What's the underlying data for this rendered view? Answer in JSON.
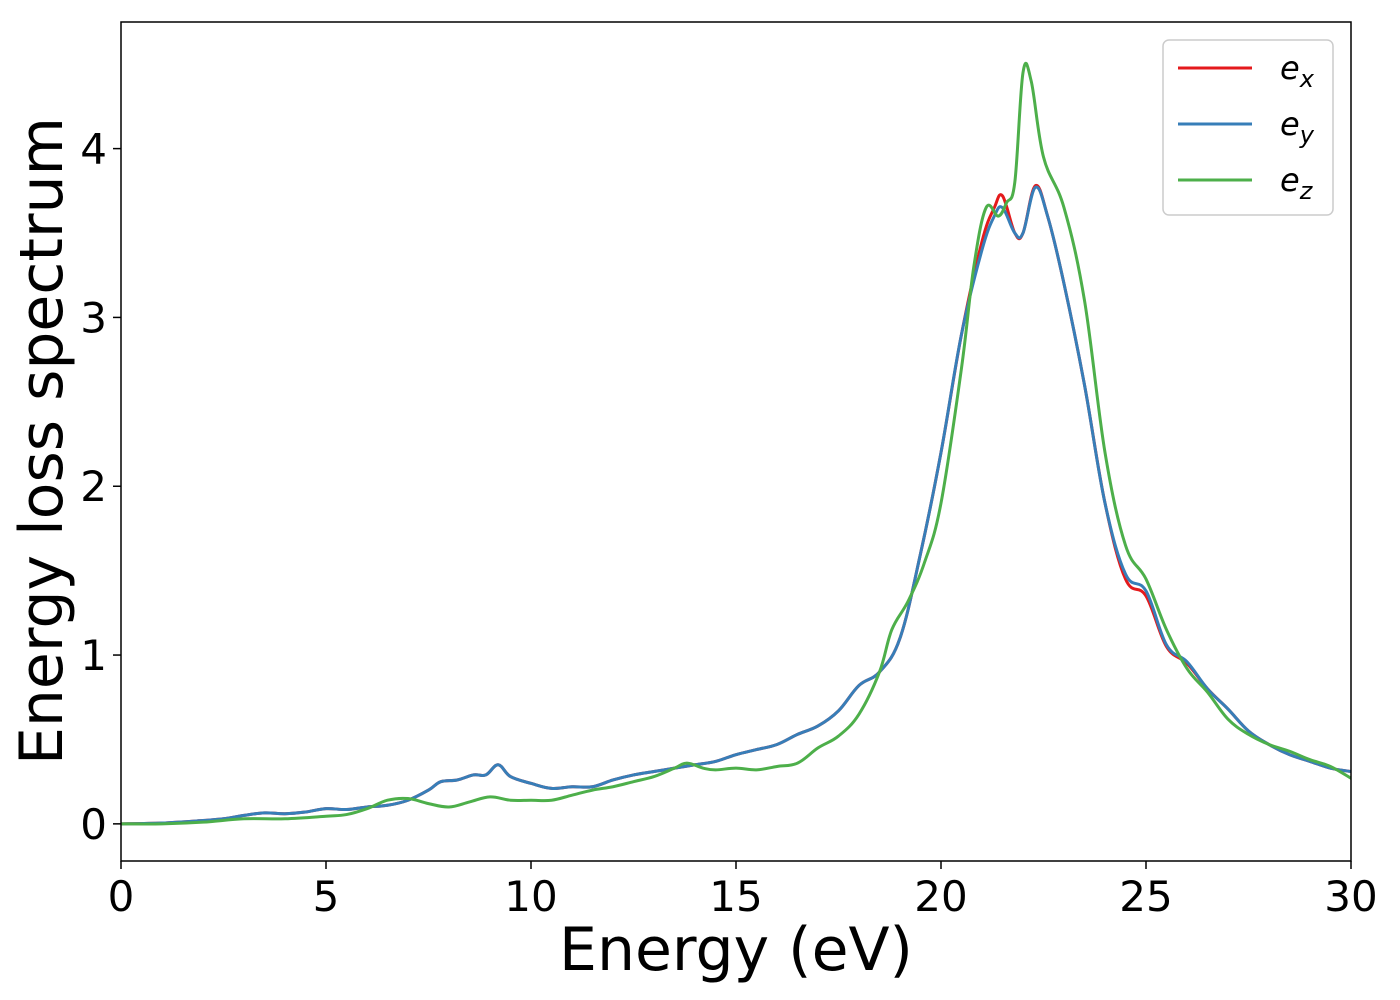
{
  "chart_data": {
    "type": "line",
    "title": "",
    "xlabel": "Energy (eV)",
    "ylabel": "Energy loss spectrum",
    "xlim": [
      0,
      30
    ],
    "ylim": [
      -0.22,
      4.75
    ],
    "xticks": [
      0,
      5,
      10,
      15,
      20,
      25,
      30
    ],
    "yticks": [
      0,
      1,
      2,
      3,
      4
    ],
    "grid": false,
    "legend_position": "top-right",
    "series": [
      {
        "name": "e_x",
        "legend_base": "e",
        "legend_sub": "x",
        "color": "#e41a1c",
        "x": [
          0,
          1,
          2,
          2.5,
          3,
          3.5,
          4,
          4.5,
          5,
          5.5,
          6,
          6.5,
          7,
          7.5,
          7.8,
          8.2,
          8.6,
          8.9,
          9.2,
          9.5,
          10,
          10.5,
          11,
          11.5,
          12,
          12.5,
          13,
          13.5,
          14,
          14.5,
          15,
          15.5,
          16,
          16.5,
          17,
          17.5,
          18,
          18.5,
          19,
          19.5,
          20,
          20.5,
          21,
          21.3,
          21.5,
          21.8,
          22,
          22.3,
          22.6,
          23,
          23.5,
          24,
          24.5,
          25,
          25.5,
          26,
          26.5,
          27,
          27.5,
          28,
          28.5,
          29,
          29.5,
          30
        ],
        "y": [
          0,
          0.005,
          0.02,
          0.03,
          0.05,
          0.065,
          0.06,
          0.07,
          0.09,
          0.085,
          0.1,
          0.11,
          0.14,
          0.2,
          0.25,
          0.26,
          0.29,
          0.29,
          0.35,
          0.28,
          0.24,
          0.21,
          0.22,
          0.22,
          0.26,
          0.29,
          0.31,
          0.33,
          0.35,
          0.37,
          0.41,
          0.44,
          0.47,
          0.53,
          0.58,
          0.67,
          0.82,
          0.9,
          1.1,
          1.6,
          2.2,
          2.9,
          3.45,
          3.65,
          3.72,
          3.5,
          3.5,
          3.78,
          3.6,
          3.2,
          2.6,
          1.9,
          1.45,
          1.35,
          1.05,
          0.95,
          0.8,
          0.68,
          0.55,
          0.47,
          0.41,
          0.37,
          0.33,
          0.31
        ]
      },
      {
        "name": "e_y",
        "legend_base": "e",
        "legend_sub": "y",
        "color": "#377eb8",
        "x": [
          0,
          1,
          2,
          2.5,
          3,
          3.5,
          4,
          4.5,
          5,
          5.5,
          6,
          6.5,
          7,
          7.5,
          7.8,
          8.2,
          8.6,
          8.9,
          9.2,
          9.5,
          10,
          10.5,
          11,
          11.5,
          12,
          12.5,
          13,
          13.5,
          14,
          14.5,
          15,
          15.5,
          16,
          16.5,
          17,
          17.5,
          18,
          18.5,
          19,
          19.5,
          20,
          20.5,
          21,
          21.3,
          21.5,
          21.8,
          22,
          22.3,
          22.6,
          23,
          23.5,
          24,
          24.5,
          25,
          25.5,
          26,
          26.5,
          27,
          27.5,
          28,
          28.5,
          29,
          29.5,
          30
        ],
        "y": [
          0,
          0.005,
          0.02,
          0.03,
          0.05,
          0.065,
          0.06,
          0.07,
          0.09,
          0.085,
          0.1,
          0.11,
          0.14,
          0.2,
          0.25,
          0.26,
          0.29,
          0.29,
          0.35,
          0.28,
          0.24,
          0.21,
          0.22,
          0.22,
          0.26,
          0.29,
          0.31,
          0.33,
          0.35,
          0.37,
          0.41,
          0.44,
          0.47,
          0.53,
          0.58,
          0.67,
          0.82,
          0.9,
          1.1,
          1.6,
          2.2,
          2.9,
          3.4,
          3.6,
          3.65,
          3.5,
          3.5,
          3.77,
          3.6,
          3.2,
          2.6,
          1.9,
          1.48,
          1.38,
          1.06,
          0.96,
          0.8,
          0.68,
          0.55,
          0.47,
          0.41,
          0.37,
          0.33,
          0.31
        ]
      },
      {
        "name": "e_z",
        "legend_base": "e",
        "legend_sub": "z",
        "color": "#4daf4a",
        "x": [
          0,
          1,
          2,
          3,
          4,
          5,
          5.5,
          6,
          6.5,
          7,
          7.5,
          8,
          8.5,
          9,
          9.5,
          10,
          10.5,
          11,
          11.5,
          12,
          12.5,
          13,
          13.5,
          13.8,
          14.2,
          14.5,
          15,
          15.5,
          16,
          16.5,
          17,
          17.5,
          18,
          18.5,
          18.8,
          19.2,
          19.6,
          20,
          20.5,
          20.8,
          21.1,
          21.4,
          21.6,
          21.8,
          22,
          22.2,
          22.5,
          23,
          23.5,
          24,
          24.5,
          25,
          25.5,
          26,
          26.5,
          27,
          27.5,
          28,
          28.5,
          29,
          29.5,
          30
        ],
        "y": [
          0,
          0,
          0.01,
          0.03,
          0.03,
          0.045,
          0.055,
          0.09,
          0.14,
          0.15,
          0.12,
          0.1,
          0.13,
          0.16,
          0.14,
          0.14,
          0.14,
          0.17,
          0.2,
          0.22,
          0.25,
          0.28,
          0.33,
          0.36,
          0.33,
          0.32,
          0.33,
          0.32,
          0.34,
          0.36,
          0.45,
          0.52,
          0.65,
          0.9,
          1.15,
          1.32,
          1.55,
          1.9,
          2.7,
          3.3,
          3.65,
          3.6,
          3.68,
          3.8,
          4.45,
          4.4,
          3.95,
          3.65,
          3.1,
          2.2,
          1.65,
          1.45,
          1.15,
          0.92,
          0.78,
          0.62,
          0.53,
          0.47,
          0.43,
          0.38,
          0.34,
          0.27
        ]
      }
    ]
  }
}
